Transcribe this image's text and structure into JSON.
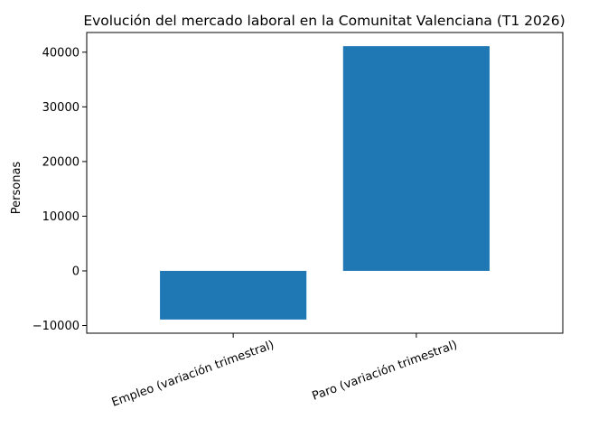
{
  "chart_data": {
    "type": "bar",
    "title": "Evolución del mercado laboral en la Comunitat Valenciana (T1 2026)",
    "xlabel": "",
    "ylabel": "Personas",
    "categories": [
      "Empleo (variación trimestral)",
      "Paro (variación trimestral)"
    ],
    "values": [
      -8900,
      41100
    ],
    "ylim": [
      -11400,
      43600
    ],
    "yticks": [
      -10000,
      0,
      10000,
      20000,
      30000,
      40000
    ],
    "ytick_labels": [
      "−10000",
      "0",
      "10000",
      "20000",
      "30000",
      "40000"
    ],
    "bar_color": "#1f77b4",
    "grid": false,
    "legend": "none"
  }
}
